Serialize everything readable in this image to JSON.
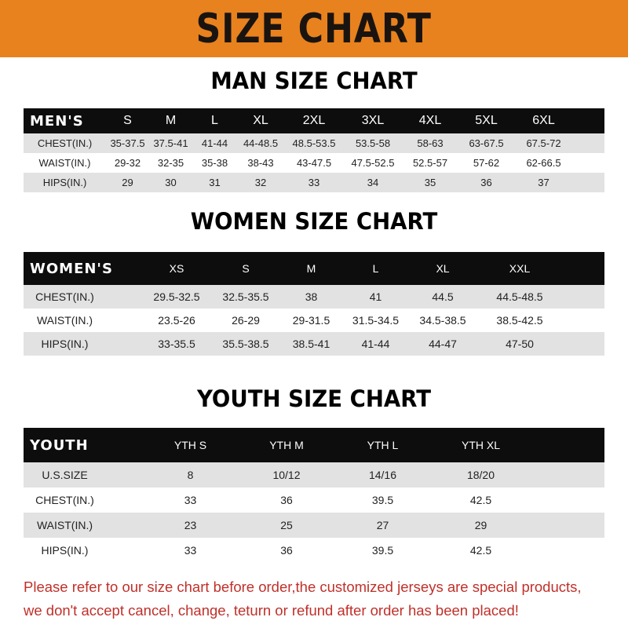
{
  "banner_title": "SIZE CHART",
  "men": {
    "title": "MAN SIZE CHART",
    "header": [
      "MEN'S",
      "S",
      "M",
      "L",
      "XL",
      "2XL",
      "3XL",
      "4XL",
      "5XL",
      "6XL"
    ],
    "rows": [
      [
        "CHEST(IN.)",
        "35-37.5",
        "37.5-41",
        "41-44",
        "44-48.5",
        "48.5-53.5",
        "53.5-58",
        "58-63",
        "63-67.5",
        "67.5-72"
      ],
      [
        "WAIST(IN.)",
        "29-32",
        "32-35",
        "35-38",
        "38-43",
        "43-47.5",
        "47.5-52.5",
        "52.5-57",
        "57-62",
        "62-66.5"
      ],
      [
        "HIPS(IN.)",
        "29",
        "30",
        "31",
        "32",
        "33",
        "34",
        "35",
        "36",
        "37"
      ]
    ]
  },
  "women": {
    "title": "WOMEN SIZE CHART",
    "header": [
      "WOMEN'S",
      "XS",
      "S",
      "M",
      "L",
      "XL",
      "XXL"
    ],
    "rows": [
      [
        "CHEST(IN.)",
        "29.5-32.5",
        "32.5-35.5",
        "38",
        "41",
        "44.5",
        "44.5-48.5"
      ],
      [
        "WAIST(IN.)",
        "23.5-26",
        "26-29",
        "29-31.5",
        "31.5-34.5",
        "34.5-38.5",
        "38.5-42.5"
      ],
      [
        "HIPS(IN.)",
        "33-35.5",
        "35.5-38.5",
        "38.5-41",
        "41-44",
        "44-47",
        "47-50"
      ]
    ]
  },
  "youth": {
    "title": "YOUTH SIZE CHART",
    "header": [
      "YOUTH",
      "YTH S",
      "YTH M",
      "YTH L",
      "YTH XL"
    ],
    "rows": [
      [
        "U.S.SIZE",
        "8",
        "10/12",
        "14/16",
        "18/20"
      ],
      [
        "CHEST(IN.)",
        "33",
        "36",
        "39.5",
        "42.5"
      ],
      [
        "WAIST(IN.)",
        "23",
        "25",
        "27",
        "29"
      ],
      [
        "HIPS(IN.)",
        "33",
        "36",
        "39.5",
        "42.5"
      ]
    ]
  },
  "footer": {
    "line1": "Please refer to our size chart before order,the customized jerseys are special products,",
    "line2": "we don't accept cancel, change, teturn or refund after order has been placed!"
  },
  "colors": {
    "banner": "#E8821E",
    "header_row": "#0d0d0d",
    "alt_row": "#e2e2e2",
    "notice": "#C0302A"
  }
}
